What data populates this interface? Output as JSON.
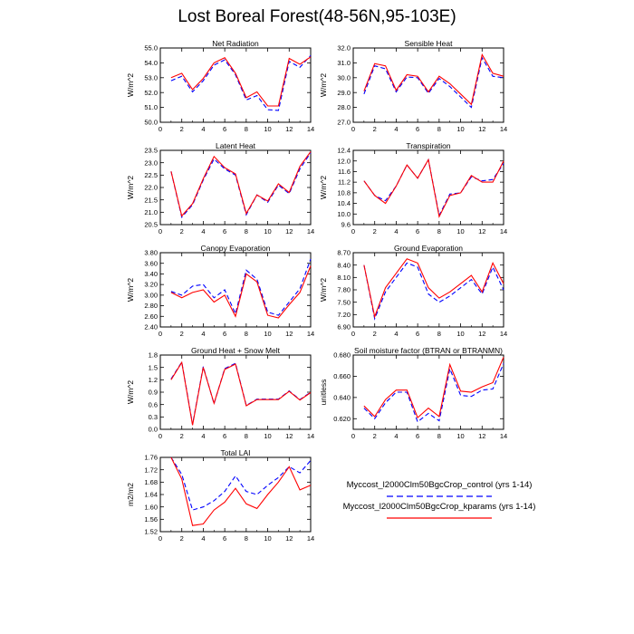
{
  "title": "Lost Boreal Forest(48-56N,95-103E)",
  "colors": {
    "control": "#0000ff",
    "kparams": "#ff0000"
  },
  "legend": {
    "control": "Myccost_l2000Clm50BgcCrop_control (yrs 1-14)",
    "kparams": "Myccost_l2000Clm50BgcCrop_kparams (yrs 1-14)"
  },
  "chart_data": [
    {
      "type": "line",
      "title": "Net Radiation",
      "xlabel": "",
      "ylabel": "W/m^2",
      "xlim": [
        0,
        14
      ],
      "ylim": [
        50.0,
        55.0
      ],
      "xticks": [
        0,
        2,
        4,
        6,
        8,
        10,
        12,
        14
      ],
      "yticks": [
        "50.0",
        "51.0",
        "52.0",
        "53.0",
        "54.0",
        "55.0"
      ],
      "x": [
        1,
        2,
        3,
        4,
        5,
        6,
        7,
        8,
        9,
        10,
        11,
        12,
        13,
        14
      ],
      "series": [
        {
          "name": "control",
          "values": [
            52.8,
            53.1,
            52.05,
            52.8,
            53.85,
            54.2,
            53.2,
            51.5,
            51.8,
            50.85,
            50.8,
            54.1,
            53.7,
            54.5
          ]
        },
        {
          "name": "kparams",
          "values": [
            53.0,
            53.3,
            52.2,
            52.95,
            54.0,
            54.35,
            53.3,
            51.65,
            52.05,
            51.1,
            51.1,
            54.3,
            53.9,
            54.4
          ]
        }
      ]
    },
    {
      "type": "line",
      "title": "Sensible Heat",
      "xlabel": "",
      "ylabel": "W/m^2",
      "xlim": [
        0,
        14
      ],
      "ylim": [
        27.0,
        32.0
      ],
      "xticks": [
        0,
        2,
        4,
        6,
        8,
        10,
        12,
        14
      ],
      "yticks": [
        "27.0",
        "28.0",
        "29.0",
        "30.0",
        "31.0",
        "32.0"
      ],
      "x": [
        1,
        2,
        3,
        4,
        5,
        6,
        7,
        8,
        9,
        10,
        11,
        12,
        13,
        14
      ],
      "series": [
        {
          "name": "control",
          "values": [
            28.9,
            30.8,
            30.6,
            29.05,
            30.05,
            30.0,
            28.95,
            29.95,
            29.4,
            28.7,
            28.0,
            31.35,
            30.1,
            30.0
          ]
        },
        {
          "name": "kparams",
          "values": [
            29.1,
            30.95,
            30.8,
            29.15,
            30.2,
            30.1,
            29.05,
            30.1,
            29.6,
            28.9,
            28.2,
            31.55,
            30.3,
            30.1
          ]
        }
      ]
    },
    {
      "type": "line",
      "title": "Latent Heat",
      "xlabel": "",
      "ylabel": "W/m^2",
      "xlim": [
        0,
        14
      ],
      "ylim": [
        20.5,
        23.5
      ],
      "xticks": [
        0,
        2,
        4,
        6,
        8,
        10,
        12,
        14
      ],
      "yticks": [
        "20.5",
        "21.0",
        "21.5",
        "22.0",
        "22.5",
        "23.0",
        "23.5"
      ],
      "x": [
        1,
        2,
        3,
        4,
        5,
        6,
        7,
        8,
        9,
        10,
        11,
        12,
        13,
        14
      ],
      "series": [
        {
          "name": "control",
          "values": [
            22.65,
            20.8,
            21.3,
            22.3,
            23.15,
            22.75,
            22.5,
            20.9,
            21.7,
            21.4,
            22.1,
            21.75,
            22.75,
            23.4
          ]
        },
        {
          "name": "kparams",
          "values": [
            22.65,
            20.85,
            21.35,
            22.35,
            23.25,
            22.8,
            22.55,
            20.95,
            21.7,
            21.45,
            22.15,
            21.8,
            22.85,
            23.45
          ]
        }
      ]
    },
    {
      "type": "line",
      "title": "Transpiration",
      "xlabel": "",
      "ylabel": "W/m^2",
      "xlim": [
        0,
        14
      ],
      "ylim": [
        9.6,
        12.4
      ],
      "xticks": [
        0,
        2,
        4,
        6,
        8,
        10,
        12,
        14
      ],
      "yticks": [
        "9.6",
        "10.0",
        "10.4",
        "10.8",
        "11.2",
        "11.6",
        "12.0",
        "12.4"
      ],
      "x": [
        1,
        2,
        3,
        4,
        5,
        6,
        7,
        8,
        9,
        10,
        11,
        12,
        13,
        14
      ],
      "series": [
        {
          "name": "control",
          "values": [
            11.25,
            10.7,
            10.5,
            11.05,
            11.85,
            11.35,
            12.05,
            9.95,
            10.75,
            10.8,
            11.4,
            11.25,
            11.3,
            11.9
          ]
        },
        {
          "name": "kparams",
          "values": [
            11.25,
            10.7,
            10.4,
            11.05,
            11.85,
            11.35,
            12.05,
            9.9,
            10.7,
            10.8,
            11.45,
            11.2,
            11.2,
            12.0
          ]
        }
      ]
    },
    {
      "type": "line",
      "title": "Canopy Evaporation",
      "xlabel": "",
      "ylabel": "W/m^2",
      "xlim": [
        0,
        14
      ],
      "ylim": [
        2.4,
        3.8
      ],
      "xticks": [
        0,
        2,
        4,
        6,
        8,
        10,
        12,
        14
      ],
      "yticks": [
        "2.40",
        "2.60",
        "2.80",
        "3.00",
        "3.20",
        "3.40",
        "3.60",
        "3.80"
      ],
      "x": [
        1,
        2,
        3,
        4,
        5,
        6,
        7,
        8,
        9,
        10,
        11,
        12,
        13,
        14
      ],
      "series": [
        {
          "name": "control",
          "values": [
            3.07,
            3.0,
            3.17,
            3.2,
            2.95,
            3.1,
            2.65,
            3.47,
            3.3,
            2.68,
            2.62,
            2.87,
            3.12,
            3.68
          ]
        },
        {
          "name": "kparams",
          "values": [
            3.05,
            2.95,
            3.05,
            3.1,
            2.87,
            3.0,
            2.6,
            3.4,
            3.25,
            2.62,
            2.57,
            2.82,
            3.05,
            3.55
          ]
        }
      ]
    },
    {
      "type": "line",
      "title": "Ground Evaporation",
      "xlabel": "",
      "ylabel": "W/m^2",
      "xlim": [
        0,
        14
      ],
      "ylim": [
        6.9,
        8.7
      ],
      "xticks": [
        0,
        2,
        4,
        6,
        8,
        10,
        12,
        14
      ],
      "yticks": [
        "6.90",
        "7.20",
        "7.50",
        "7.80",
        "8.10",
        "8.40",
        "8.70"
      ],
      "x": [
        1,
        2,
        3,
        4,
        5,
        6,
        7,
        8,
        9,
        10,
        11,
        12,
        13,
        14
      ],
      "series": [
        {
          "name": "control",
          "values": [
            8.4,
            7.1,
            7.75,
            8.1,
            8.45,
            8.35,
            7.7,
            7.5,
            7.65,
            7.85,
            8.05,
            7.7,
            8.35,
            7.8
          ]
        },
        {
          "name": "kparams",
          "values": [
            8.4,
            7.15,
            7.85,
            8.2,
            8.55,
            8.45,
            7.85,
            7.6,
            7.75,
            7.95,
            8.15,
            7.75,
            8.45,
            7.95
          ]
        }
      ]
    },
    {
      "type": "line",
      "title": "Ground Heat + Snow Melt",
      "xlabel": "",
      "ylabel": "W/m^2",
      "xlim": [
        0,
        14
      ],
      "ylim": [
        0.0,
        1.8
      ],
      "xticks": [
        0,
        2,
        4,
        6,
        8,
        10,
        12,
        14
      ],
      "yticks": [
        "0.0",
        "0.3",
        "0.6",
        "0.9",
        "1.2",
        "1.5",
        "1.8"
      ],
      "x": [
        1,
        2,
        3,
        4,
        5,
        6,
        7,
        8,
        9,
        10,
        11,
        12,
        13,
        14
      ],
      "series": [
        {
          "name": "control",
          "values": [
            1.22,
            1.63,
            0.12,
            1.52,
            0.62,
            1.47,
            1.6,
            0.58,
            0.73,
            0.73,
            0.73,
            0.93,
            0.72,
            0.9
          ]
        },
        {
          "name": "kparams",
          "values": [
            1.2,
            1.62,
            0.1,
            1.5,
            0.63,
            1.45,
            1.58,
            0.57,
            0.72,
            0.72,
            0.72,
            0.92,
            0.71,
            0.89
          ]
        }
      ]
    },
    {
      "type": "line",
      "title": "Soil moisture factor (BTRAN or BTRANMN)",
      "xlabel": "",
      "ylabel": "unitless",
      "xlim": [
        0,
        14
      ],
      "ylim": [
        0.61,
        0.68
      ],
      "xticks": [
        0,
        2,
        4,
        6,
        8,
        10,
        12,
        14
      ],
      "yticks": [
        "0.620",
        "0.640",
        "0.660",
        "0.680"
      ],
      "x": [
        1,
        2,
        3,
        4,
        5,
        6,
        7,
        8,
        9,
        10,
        11,
        12,
        13,
        14
      ],
      "series": [
        {
          "name": "control",
          "values": [
            0.63,
            0.62,
            0.635,
            0.645,
            0.645,
            0.617,
            0.625,
            0.618,
            0.667,
            0.642,
            0.641,
            0.647,
            0.648,
            0.672
          ]
        },
        {
          "name": "kparams",
          "values": [
            0.632,
            0.622,
            0.638,
            0.647,
            0.647,
            0.621,
            0.63,
            0.622,
            0.671,
            0.646,
            0.645,
            0.65,
            0.654,
            0.678
          ]
        }
      ]
    },
    {
      "type": "line",
      "title": "Total LAI",
      "xlabel": "",
      "ylabel": "m2/m2",
      "xlim": [
        0,
        14
      ],
      "ylim": [
        1.52,
        1.76
      ],
      "xticks": [
        0,
        2,
        4,
        6,
        8,
        10,
        12,
        14
      ],
      "yticks": [
        "1.52",
        "1.56",
        "1.60",
        "1.64",
        "1.68",
        "1.72",
        "1.76"
      ],
      "x": [
        1,
        2,
        3,
        4,
        5,
        6,
        7,
        8,
        9,
        10,
        11,
        12,
        13,
        14
      ],
      "series": [
        {
          "name": "control",
          "values": [
            1.76,
            1.705,
            1.59,
            1.6,
            1.62,
            1.65,
            1.7,
            1.65,
            1.64,
            1.67,
            1.695,
            1.73,
            1.71,
            1.75
          ]
        },
        {
          "name": "kparams",
          "values": [
            1.76,
            1.69,
            1.54,
            1.545,
            1.59,
            1.615,
            1.66,
            1.61,
            1.595,
            1.64,
            1.68,
            1.73,
            1.655,
            1.67
          ]
        }
      ]
    }
  ]
}
